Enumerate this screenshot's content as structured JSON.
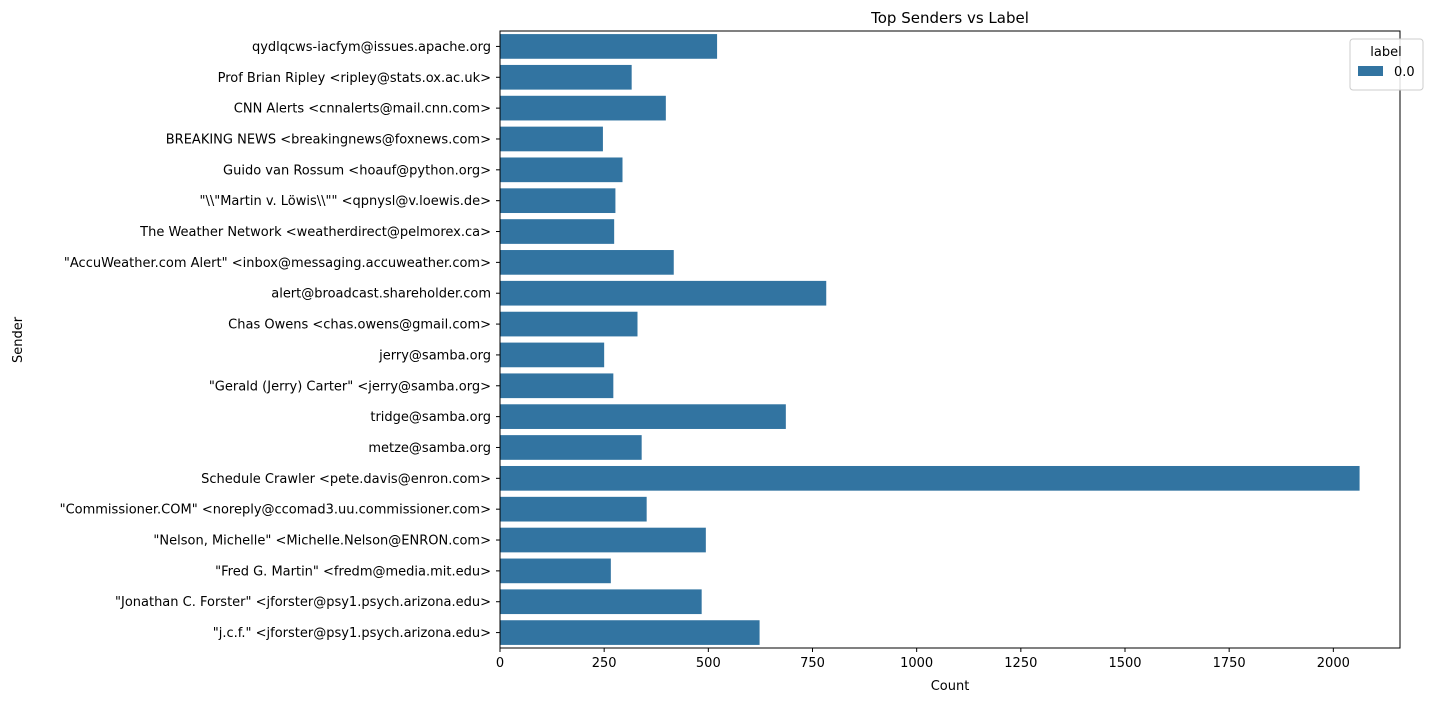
{
  "chart_data": {
    "type": "bar",
    "orientation": "horizontal",
    "title": "Top Senders vs Label",
    "xlabel": "Count",
    "ylabel": "Sender",
    "xlim": [
      0,
      2160
    ],
    "xticks": [
      0,
      250,
      500,
      750,
      1000,
      1250,
      1500,
      1750,
      2000
    ],
    "grid": false,
    "legend": {
      "title": "label",
      "placement": "top-right"
    },
    "categories": [
      "qydlqcws-iacfym@issues.apache.org",
      "Prof Brian Ripley <ripley@stats.ox.ac.uk>",
      "CNN Alerts <cnnalerts@mail.cnn.com>",
      "BREAKING NEWS <breakingnews@foxnews.com>",
      "Guido van Rossum <hoauf@python.org>",
      "\"\\\\\"Martin v. Löwis\\\\\"\" <qpnysl@v.loewis.de>",
      "The Weather Network <weatherdirect@pelmorex.ca>",
      "\"AccuWeather.com Alert\" <inbox@messaging.accuweather.com>",
      "alert@broadcast.shareholder.com",
      "Chas Owens <chas.owens@gmail.com>",
      "jerry@samba.org",
      "\"Gerald (Jerry) Carter\" <jerry@samba.org>",
      "tridge@samba.org",
      "metze@samba.org",
      "Schedule Crawler <pete.davis@enron.com>",
      "\"Commissioner.COM\" <noreply@ccomad3.uu.commissioner.com>",
      "\"Nelson, Michelle\" <Michelle.Nelson@ENRON.com>",
      "\"Fred G. Martin\" <fredm@media.mit.edu>",
      "\"Jonathan C. Forster\" <jforster@psy1.psych.arizona.edu>",
      "\"j.c.f.\" <jforster@psy1.psych.arizona.edu>"
    ],
    "series": [
      {
        "name": "0.0",
        "color": "#3274a1",
        "values": [
          521,
          316,
          398,
          247,
          294,
          277,
          274,
          417,
          783,
          330,
          250,
          272,
          686,
          340,
          2063,
          352,
          494,
          266,
          484,
          623
        ]
      }
    ]
  }
}
